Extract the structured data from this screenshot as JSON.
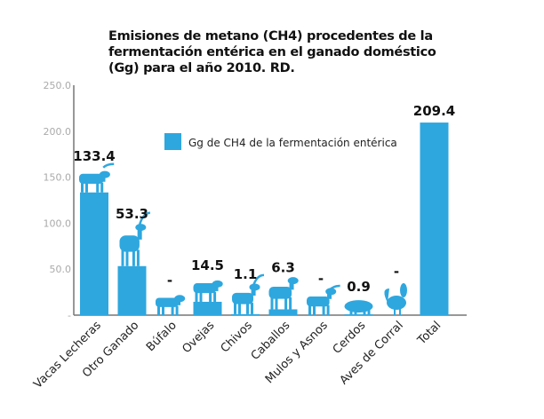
{
  "chart_data": {
    "type": "bar",
    "title_lines": [
      "Emisiones de metano (CH4) procedentes de la",
      "fermentación entérica en el ganado doméstico",
      "(Gg) para el año 2010. RD."
    ],
    "categories": [
      "Vacas Lecheras",
      "Otro Ganado",
      "Búfalo",
      "Ovejas",
      "Chivos",
      "Caballos",
      "Mulos y Asnos",
      "Cerdos",
      "Aves de Corral",
      "Total"
    ],
    "values": [
      133.4,
      53.3,
      null,
      14.5,
      1.1,
      6.3,
      null,
      0.9,
      null,
      209.4
    ],
    "value_labels": [
      "133.4",
      "53.3",
      "-",
      "14.5",
      "1.1",
      "6.3",
      "-",
      "0.9",
      "-",
      "209.4"
    ],
    "icons": [
      "cow-icon",
      "deer-icon",
      "buffalo-icon",
      "sheep-icon",
      "goat-icon",
      "horse-icon",
      "donkey-icon",
      "pig-icon",
      "rooster-icon",
      null
    ],
    "yticks": [
      "-",
      "50.0",
      "100.0",
      "150.0",
      "200.0",
      "250.0"
    ],
    "ylim": [
      0,
      250
    ],
    "legend": {
      "label": "Gg de CH4 de la fermentación entérica",
      "placement": "top-center"
    },
    "grid": false,
    "color": "#2ea7df"
  }
}
